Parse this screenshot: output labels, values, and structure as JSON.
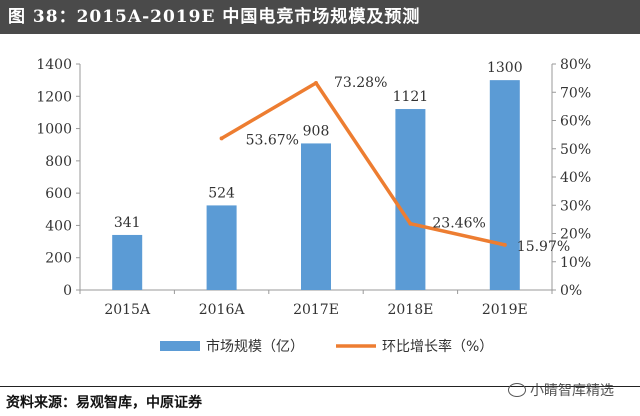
{
  "title": "图 38：2015A-2019E 中国电竞市场规模及预测",
  "source": "资料来源：易观智库，中原证券",
  "watermark": "小睛智库精选",
  "chart_data": {
    "type": "bar+line",
    "categories": [
      "2015A",
      "2016A",
      "2017E",
      "2018E",
      "2019E"
    ],
    "series": [
      {
        "name": "市场规模（亿）",
        "type": "bar",
        "axis": "left",
        "color": "#5b9bd5",
        "values": [
          341,
          524,
          908,
          1121,
          1300
        ],
        "labels": [
          "341",
          "524",
          "908",
          "1121",
          "1300"
        ]
      },
      {
        "name": "环比增长率（%）",
        "type": "line",
        "axis": "right",
        "color": "#ed7d31",
        "values": [
          null,
          53.67,
          73.28,
          23.46,
          15.97
        ],
        "labels": [
          "",
          "53.67%",
          "73.28%",
          "23.46%",
          "15.97%"
        ]
      }
    ],
    "y_left": {
      "min": 0,
      "max": 1400,
      "ticks": [
        "0",
        "200",
        "400",
        "600",
        "800",
        "1000",
        "1200",
        "1400"
      ]
    },
    "y_right": {
      "min": 0,
      "max": 80,
      "ticks": [
        "0%",
        "10%",
        "20%",
        "30%",
        "40%",
        "50%",
        "60%",
        "70%",
        "80%"
      ]
    },
    "grid": false,
    "legend": "bottom"
  }
}
